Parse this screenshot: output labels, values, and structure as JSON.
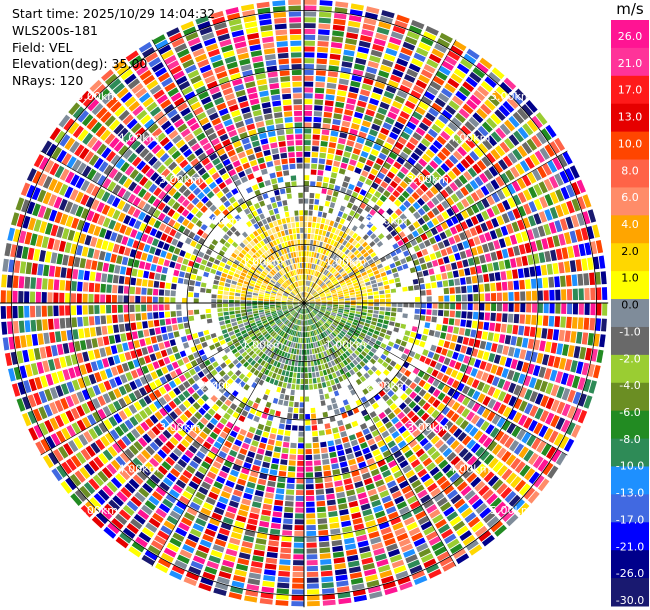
{
  "header": {
    "start_time": "Start time: 2025/10/29 14:04:32",
    "instrument": "WLS200s-181",
    "field": "Field: VEL",
    "elevation": "Elevation(deg): 35.00",
    "nrays": "NRays: 120"
  },
  "colorbar": {
    "unit": "m/s",
    "ticks": [
      "26.0",
      "21.0",
      "17.0",
      "13.0",
      "10.0",
      "8.0",
      "6.0",
      "4.0",
      "2.0",
      "1.0",
      "0.0",
      "-1.0",
      "-2.0",
      "-4.0",
      "-6.0",
      "-8.0",
      "-10.0",
      "-13.0",
      "-17.0",
      "-21.0",
      "-26.0",
      "-30.0"
    ],
    "colors": [
      "#ff1493",
      "#ff3399",
      "#ff1a1a",
      "#e60000",
      "#ff4500",
      "#ff6347",
      "#ff8c69",
      "#ffa500",
      "#ffd700",
      "#ffff00",
      "#7f8c9a",
      "#696969",
      "#9acd32",
      "#6b8e23",
      "#228b22",
      "#2e8b57",
      "#1e90ff",
      "#4169e1",
      "#0000ff",
      "#00008b",
      "#191970"
    ]
  },
  "chart_data": {
    "type": "heatmap",
    "title": "",
    "field": "VEL",
    "units": "m/s",
    "elevation_deg": 35.0,
    "n_rays": 120,
    "range_ring_labels": [
      "1.00km",
      "2.00km",
      "3.00km",
      "4.00km",
      "5.00km"
    ],
    "range_rings_km": [
      1,
      2,
      3,
      4,
      5
    ],
    "max_range_km": 5.2,
    "velocity_range": [
      -30,
      26
    ],
    "regions": [
      {
        "range_km": [
          0,
          1.5
        ],
        "azimuth": "north",
        "dominant_value": 4.0
      },
      {
        "range_km": [
          0,
          1.5
        ],
        "azimuth": "south",
        "dominant_value": -6.0
      },
      {
        "range_km": [
          1.5,
          2.4
        ],
        "azimuth": "all",
        "dominant_value": 0.0
      },
      {
        "range_km": [
          2.4,
          5.2
        ],
        "azimuth": "all",
        "dominant_value": "noise"
      }
    ]
  }
}
